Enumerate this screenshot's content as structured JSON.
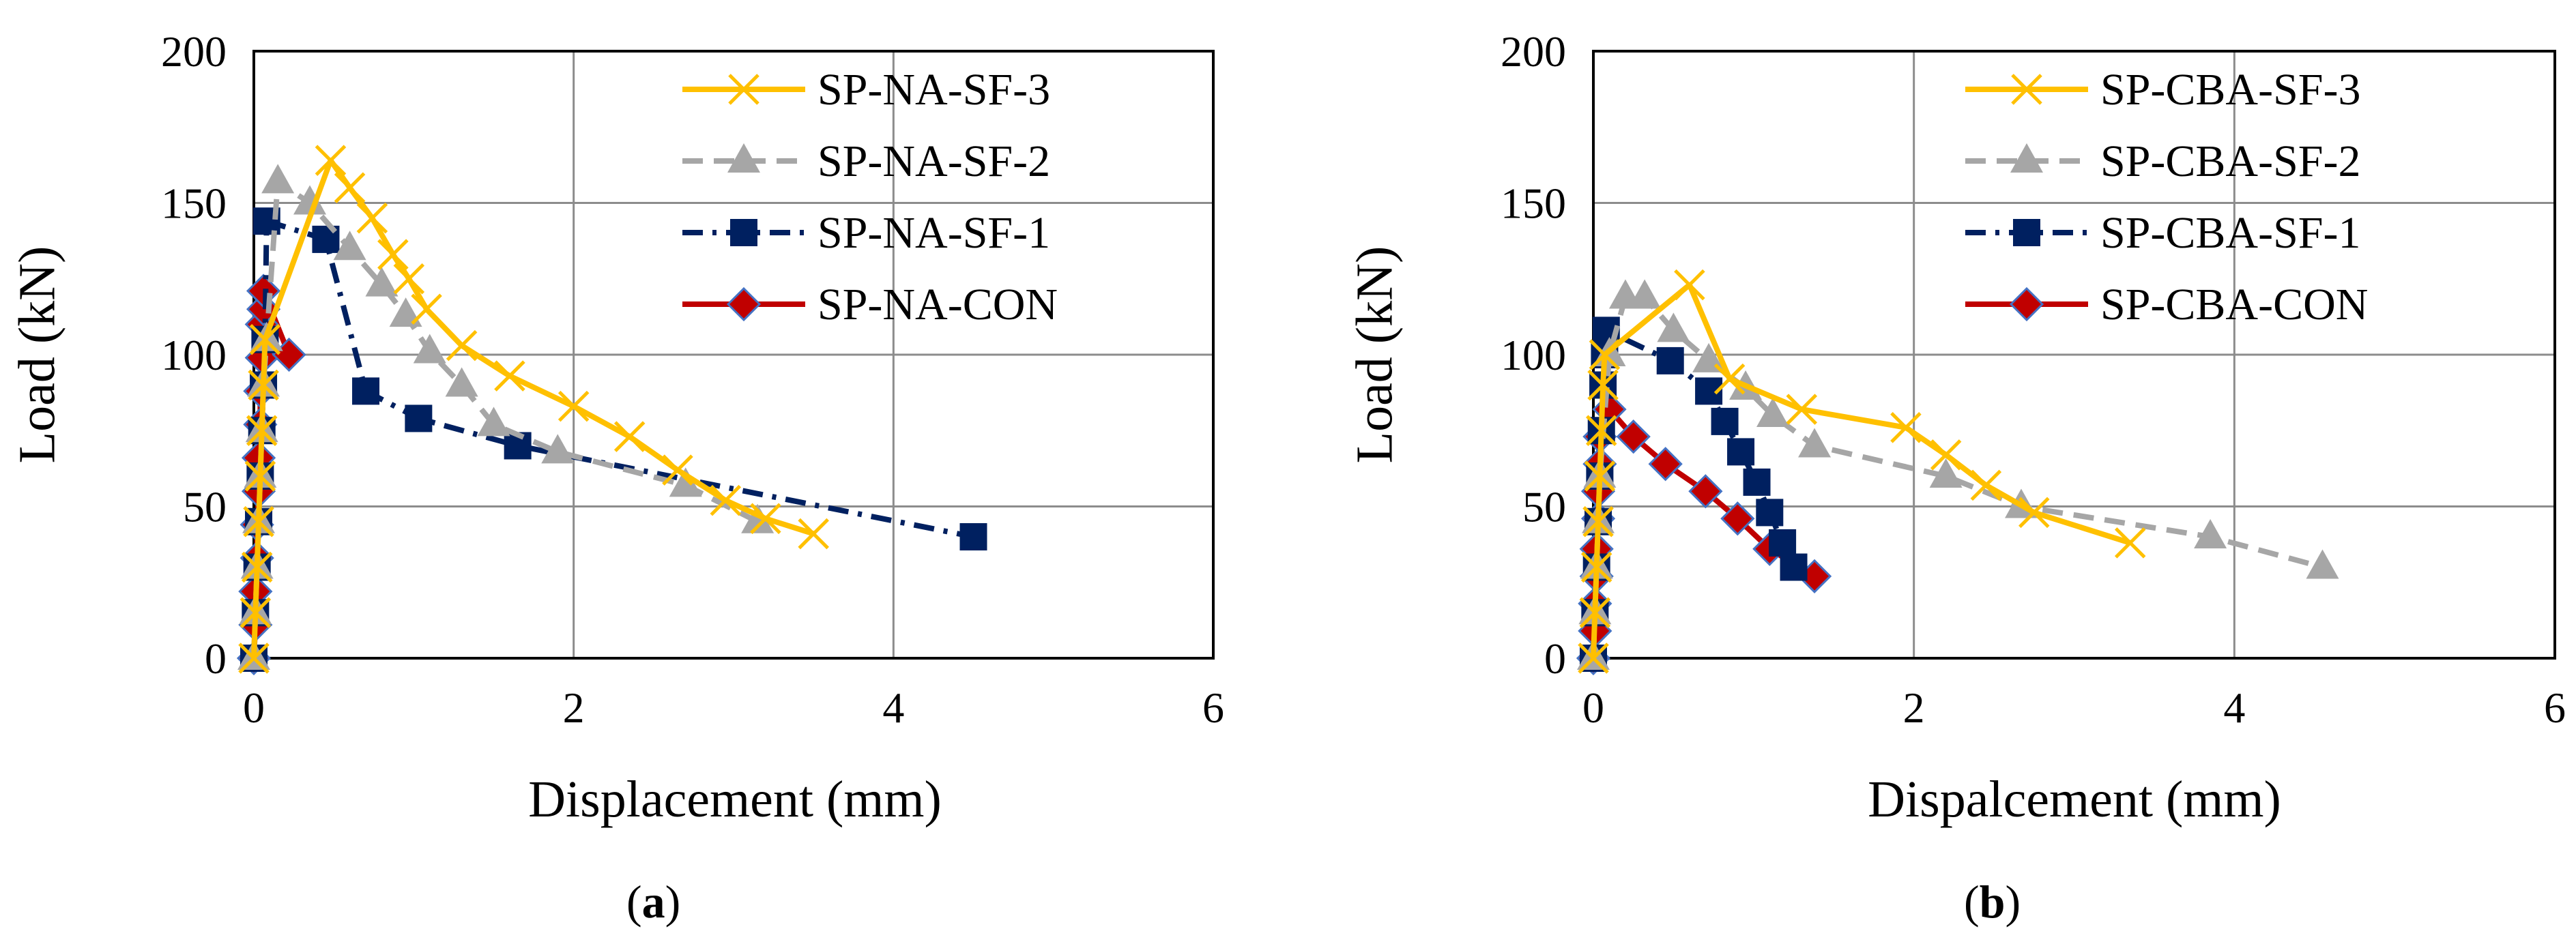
{
  "chart_data": [
    {
      "type": "line",
      "panel_label": "a",
      "xlabel": "Displacement (mm)",
      "ylabel": "Load (kN)",
      "xlim": [
        0,
        6
      ],
      "ylim": [
        0,
        200
      ],
      "xticks": [
        "0",
        "2",
        "4",
        "6"
      ],
      "yticks": [
        "0",
        "50",
        "100",
        "150",
        "200"
      ],
      "grid": true,
      "legend_position": "top-right",
      "series": [
        {
          "name": "SP-NA-SF-3",
          "color": "#FFC000",
          "dash": "solid",
          "marker": "x",
          "x": [
            0,
            0.01,
            0.02,
            0.03,
            0.04,
            0.05,
            0.06,
            0.07,
            0.48,
            0.6,
            0.74,
            0.87,
            0.97,
            1.08,
            1.3,
            1.6,
            2.0,
            2.35,
            2.65,
            2.95,
            3.2,
            3.5
          ],
          "y": [
            0,
            15,
            30,
            45,
            60,
            75,
            90,
            105,
            164,
            155,
            145,
            133,
            125,
            115,
            103,
            93,
            83,
            73,
            62,
            52,
            46,
            41
          ]
        },
        {
          "name": "SP-NA-SF-2",
          "color": "#A6A6A6",
          "dash": "dashed",
          "marker": "triangle",
          "x": [
            0,
            0.01,
            0.02,
            0.03,
            0.04,
            0.05,
            0.06,
            0.08,
            0.15,
            0.35,
            0.6,
            0.8,
            0.95,
            1.1,
            1.3,
            1.5,
            1.9,
            2.7,
            3.15
          ],
          "y": [
            0,
            15,
            30,
            45,
            60,
            75,
            90,
            105,
            157,
            150,
            135,
            123,
            113,
            101,
            90,
            77,
            68,
            57,
            45
          ]
        },
        {
          "name": "SP-NA-SF-1",
          "color": "#002060",
          "dash": "dashdot",
          "marker": "square",
          "x": [
            0,
            0.01,
            0.02,
            0.03,
            0.04,
            0.05,
            0.06,
            0.07,
            0.08,
            0.45,
            0.7,
            1.03,
            1.65,
            4.5
          ],
          "y": [
            0,
            15,
            30,
            45,
            60,
            75,
            90,
            105,
            144,
            138,
            88,
            79,
            70,
            40
          ]
        },
        {
          "name": "SP-NA-CON",
          "color": "#C00000",
          "dash": "solid",
          "marker": "diamond",
          "x": [
            0,
            0.01,
            0.01,
            0.02,
            0.02,
            0.03,
            0.03,
            0.04,
            0.04,
            0.05,
            0.05,
            0.06,
            0.06,
            0.22
          ],
          "y": [
            0,
            11,
            22,
            33,
            44,
            55,
            66,
            77,
            88,
            99,
            110,
            115,
            121,
            100
          ]
        }
      ]
    },
    {
      "type": "line",
      "panel_label": "b",
      "xlabel": "Dispalcement (mm)",
      "ylabel": "Load (kN)",
      "xlim": [
        0,
        6
      ],
      "ylim": [
        0,
        200
      ],
      "xticks": [
        "0",
        "2",
        "4",
        "6"
      ],
      "yticks": [
        "0",
        "50",
        "100",
        "150",
        "200"
      ],
      "grid": true,
      "legend_position": "top-right",
      "series": [
        {
          "name": "SP-CBA-SF-3",
          "color": "#FFC000",
          "dash": "solid",
          "marker": "x",
          "x": [
            0,
            0.01,
            0.02,
            0.03,
            0.04,
            0.05,
            0.06,
            0.07,
            0.6,
            0.85,
            1.3,
            1.95,
            2.2,
            2.45,
            2.75,
            3.35
          ],
          "y": [
            0,
            15,
            30,
            45,
            60,
            75,
            90,
            100,
            123,
            92,
            82,
            76,
            67,
            57,
            48,
            38
          ]
        },
        {
          "name": "SP-CBA-SF-2",
          "color": "#A6A6A6",
          "dash": "dashed",
          "marker": "triangle",
          "x": [
            0,
            0.01,
            0.02,
            0.03,
            0.04,
            0.1,
            0.2,
            0.32,
            0.5,
            0.72,
            0.95,
            1.12,
            1.38,
            2.2,
            2.67,
            3.85,
            4.55
          ],
          "y": [
            0,
            15,
            30,
            45,
            60,
            100,
            119,
            119,
            108,
            98,
            89,
            80,
            70,
            60,
            50,
            40,
            30
          ]
        },
        {
          "name": "SP-CBA-SF-1",
          "color": "#002060",
          "dash": "dashdot",
          "marker": "square",
          "x": [
            0,
            0.01,
            0.02,
            0.03,
            0.04,
            0.05,
            0.06,
            0.07,
            0.08,
            0.48,
            0.72,
            0.82,
            0.92,
            1.02,
            1.1,
            1.18,
            1.25
          ],
          "y": [
            0,
            15,
            30,
            45,
            60,
            75,
            90,
            100,
            108,
            98,
            88,
            78,
            68,
            58,
            48,
            38,
            30
          ]
        },
        {
          "name": "SP-CBA-CON",
          "color": "#C00000",
          "dash": "solid",
          "marker": "diamond",
          "x": [
            0,
            0.01,
            0.01,
            0.02,
            0.02,
            0.03,
            0.03,
            0.04,
            0.04,
            0.1,
            0.25,
            0.45,
            0.7,
            0.9,
            1.1,
            1.38
          ],
          "y": [
            0,
            9,
            18,
            27,
            36,
            46,
            55,
            64,
            73,
            82,
            73,
            64,
            55,
            46,
            36,
            27
          ]
        }
      ]
    }
  ]
}
